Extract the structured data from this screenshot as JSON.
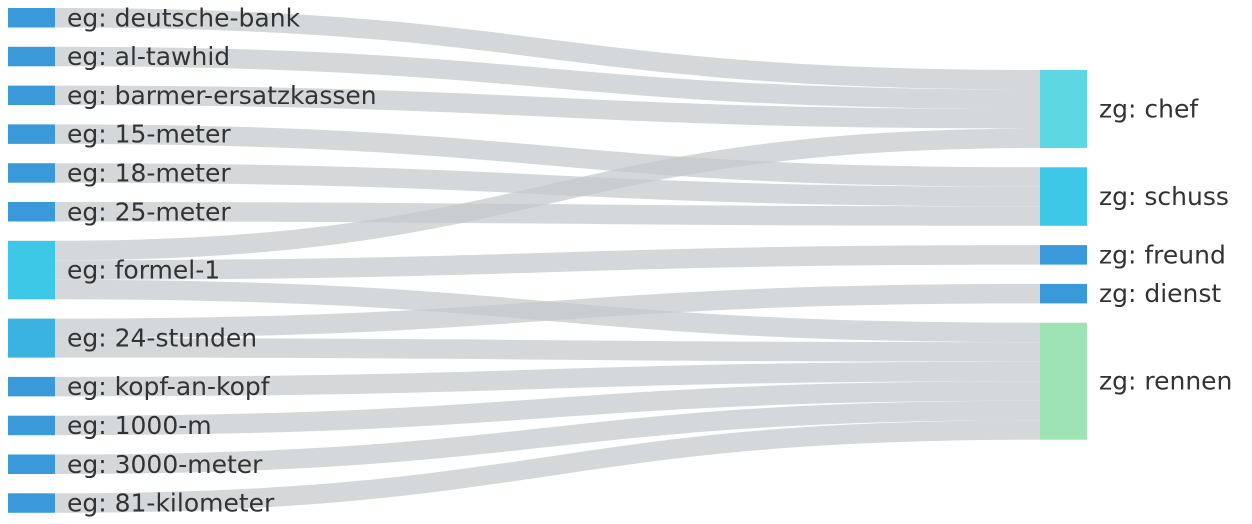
{
  "chart_data": {
    "type": "sankey",
    "sources": [
      {
        "id": "deutsche-bank",
        "label": "eg: deutsche-bank",
        "color": "#3a9ad9"
      },
      {
        "id": "al-tawhid",
        "label": "eg: al-tawhid",
        "color": "#3a9ad9"
      },
      {
        "id": "barmer-ersatzkassen",
        "label": "eg: barmer-ersatzkassen",
        "color": "#3a9ad9"
      },
      {
        "id": "15-meter",
        "label": "eg: 15-meter",
        "color": "#3a9ad9"
      },
      {
        "id": "18-meter",
        "label": "eg: 18-meter",
        "color": "#3a9ad9"
      },
      {
        "id": "25-meter",
        "label": "eg: 25-meter",
        "color": "#3a9ad9"
      },
      {
        "id": "formel-1",
        "label": "eg: formel-1",
        "color": "#3ec8e8"
      },
      {
        "id": "24-stunden",
        "label": "eg: 24-stunden",
        "color": "#3ab2e2"
      },
      {
        "id": "kopf-an-kopf",
        "label": "eg: kopf-an-kopf",
        "color": "#3a9ad9"
      },
      {
        "id": "1000-m",
        "label": "eg: 1000-m",
        "color": "#3a9ad9"
      },
      {
        "id": "3000-meter",
        "label": "eg: 3000-meter",
        "color": "#3a9ad9"
      },
      {
        "id": "81-kilometer",
        "label": "eg: 81-kilometer",
        "color": "#3a9ad9"
      }
    ],
    "targets": [
      {
        "id": "chef",
        "label": "zg: chef",
        "color": "#5cd8e2"
      },
      {
        "id": "schuss",
        "label": "zg: schuss",
        "color": "#3ec8e8"
      },
      {
        "id": "freund",
        "label": "zg: freund",
        "color": "#3a9ad9"
      },
      {
        "id": "dienst",
        "label": "zg: dienst",
        "color": "#3a9ad9"
      },
      {
        "id": "rennen",
        "label": "zg: rennen",
        "color": "#9de3b6"
      }
    ],
    "links": [
      {
        "source": "deutsche-bank",
        "target": "chef",
        "value": 1
      },
      {
        "source": "al-tawhid",
        "target": "chef",
        "value": 1
      },
      {
        "source": "barmer-ersatzkassen",
        "target": "chef",
        "value": 1
      },
      {
        "source": "formel-1",
        "target": "chef",
        "value": 1
      },
      {
        "source": "15-meter",
        "target": "schuss",
        "value": 1
      },
      {
        "source": "18-meter",
        "target": "schuss",
        "value": 1
      },
      {
        "source": "25-meter",
        "target": "schuss",
        "value": 1
      },
      {
        "source": "formel-1",
        "target": "freund",
        "value": 1
      },
      {
        "source": "24-stunden",
        "target": "dienst",
        "value": 1
      },
      {
        "source": "formel-1",
        "target": "rennen",
        "value": 1
      },
      {
        "source": "24-stunden",
        "target": "rennen",
        "value": 1
      },
      {
        "source": "kopf-an-kopf",
        "target": "rennen",
        "value": 1
      },
      {
        "source": "1000-m",
        "target": "rennen",
        "value": 1
      },
      {
        "source": "3000-meter",
        "target": "rennen",
        "value": 1
      },
      {
        "source": "81-kilometer",
        "target": "rennen",
        "value": 1
      }
    ]
  }
}
